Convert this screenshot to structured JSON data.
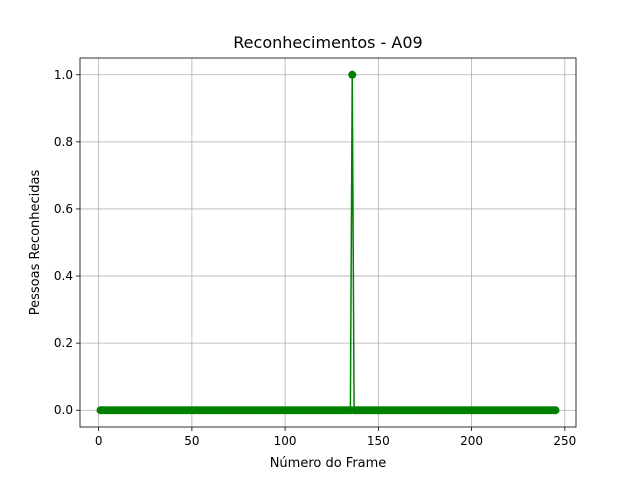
{
  "chart_data": {
    "type": "line",
    "title": "Reconhecimentos - A09",
    "xlabel": "Número do Frame",
    "ylabel": "Pessoas Reconhecidas",
    "xlim": [
      -10,
      256
    ],
    "ylim": [
      -0.05,
      1.05
    ],
    "xticks": [
      0,
      50,
      100,
      150,
      200,
      250
    ],
    "yticks": [
      0.0,
      0.2,
      0.4,
      0.6,
      0.8,
      1.0
    ],
    "xtick_labels": [
      "0",
      "50",
      "100",
      "150",
      "200",
      "250"
    ],
    "ytick_labels": [
      "0.0",
      "0.2",
      "0.4",
      "0.6",
      "0.8",
      "1.0"
    ],
    "grid": true,
    "series": [
      {
        "color": "#008000",
        "marker": "circle",
        "x_start": 1,
        "x_end": 245,
        "default_value": 0,
        "nonzero_points": [
          {
            "x": 136,
            "y": 1
          }
        ]
      }
    ]
  }
}
